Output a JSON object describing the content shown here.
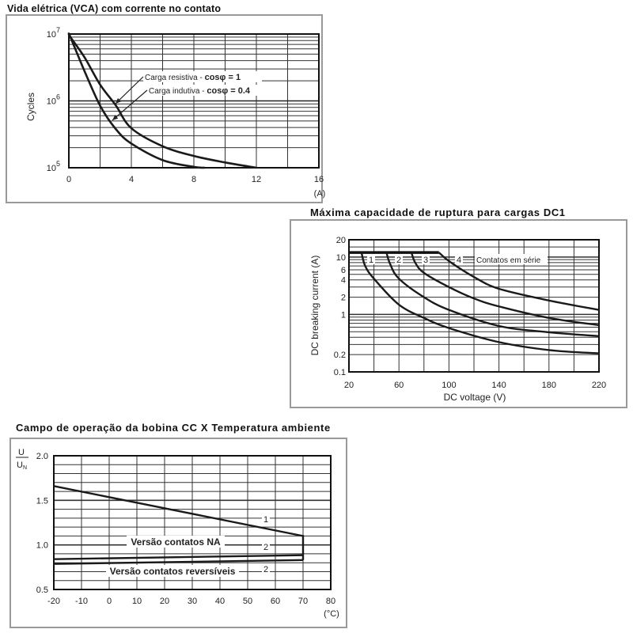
{
  "chart_data": [
    {
      "type": "line",
      "title": "Vida elétrica (VCA) com corrente no contato",
      "xlabel": "(A)",
      "ylabel": "Cycles",
      "xlim": [
        0,
        16
      ],
      "ylim": [
        100000,
        10000000
      ],
      "yscale": "log",
      "grid": true,
      "xticks": [
        0,
        4,
        8,
        12,
        16
      ],
      "yticks": [
        {
          "value": 10000000,
          "base": "10",
          "exp": "7"
        },
        {
          "value": 1000000,
          "base": "10",
          "exp": "6"
        },
        {
          "value": 100000,
          "base": "10",
          "exp": "5"
        }
      ],
      "series": [
        {
          "name": "Carga resistiva - cosφ = 1",
          "x": [
            0.1,
            1,
            2,
            3,
            4,
            6,
            8,
            10,
            12
          ],
          "y": [
            9000000,
            4500000,
            1750000,
            860000,
            390000,
            210000,
            150000,
            120000,
            100000
          ]
        },
        {
          "name": "Carga indutiva - cosφ = 0.4",
          "x": [
            0.1,
            1,
            2,
            3,
            4,
            6,
            8,
            8.7
          ],
          "y": [
            9000000,
            2800000,
            850000,
            380000,
            230000,
            130000,
            103000,
            100000
          ]
        }
      ],
      "annotations": [
        {
          "text_main": "Carga resistiva - ",
          "text_bold": "cosφ = 1"
        },
        {
          "text_main": "Carga indutiva - ",
          "text_bold": "cosφ = 0.4"
        }
      ]
    },
    {
      "type": "line",
      "title": "Máxima capacidade de ruptura para cargas  DC1",
      "xlabel": "DC voltage (V)",
      "ylabel": "DC breaking current (A)",
      "xlim": [
        20,
        220
      ],
      "ylim": [
        0.1,
        20
      ],
      "yscale": "log",
      "grid": true,
      "xticks": [
        20,
        60,
        100,
        140,
        180,
        220
      ],
      "yticks": [
        20,
        10,
        6,
        4,
        2,
        1,
        0.2,
        0.1
      ],
      "limit_line": {
        "x": [
          20,
          92
        ],
        "y": 12
      },
      "series": [
        {
          "name": "1",
          "x": [
            30,
            33,
            40,
            60,
            80,
            100,
            140,
            180,
            220
          ],
          "y": [
            12,
            7,
            4.2,
            1.48,
            0.87,
            0.58,
            0.33,
            0.24,
            0.21
          ]
        },
        {
          "name": "2",
          "x": [
            50,
            53,
            60,
            80,
            100,
            140,
            180,
            220
          ],
          "y": [
            12,
            7.5,
            4.2,
            2.0,
            1.2,
            0.63,
            0.49,
            0.42
          ]
        },
        {
          "name": "3",
          "x": [
            70,
            73,
            80,
            100,
            120,
            140,
            180,
            220
          ],
          "y": [
            12,
            8,
            5.3,
            3.0,
            1.9,
            1.38,
            0.87,
            0.65
          ]
        },
        {
          "name": "4",
          "x": [
            92,
            100,
            120,
            140,
            180,
            220
          ],
          "y": [
            12,
            8.5,
            4.5,
            2.8,
            1.75,
            1.2
          ]
        }
      ],
      "annotation": "Contatos em série"
    },
    {
      "type": "line",
      "title": "Campo de operação da bobina CC X Temperatura ambiente",
      "xlabel": "(°C)",
      "ylabel_num": "U",
      "ylabel_den": "U",
      "ylabel_sub": "N",
      "xlim": [
        -20,
        80
      ],
      "ylim": [
        0.5,
        2.0
      ],
      "grid": true,
      "xticks": [
        -20,
        -10,
        0,
        10,
        20,
        30,
        40,
        50,
        60,
        70,
        80
      ],
      "yticks": [
        "0.5",
        "1.0",
        "1.5",
        "2.0"
      ],
      "series": [
        {
          "name": "1",
          "x": [
            -20,
            70,
            70
          ],
          "y": [
            1.66,
            1.1,
            0.83
          ]
        },
        {
          "name": "2",
          "group": "Versão contatos NA",
          "x": [
            -20,
            70
          ],
          "y": [
            0.84,
            0.885
          ]
        },
        {
          "name": "2",
          "group": "Versão contatos reversíveis",
          "x": [
            -20,
            70
          ],
          "y": [
            0.787,
            0.83
          ]
        }
      ],
      "annotations": [
        "Versão contatos NA",
        "Versão contatos reversíveis"
      ]
    }
  ]
}
